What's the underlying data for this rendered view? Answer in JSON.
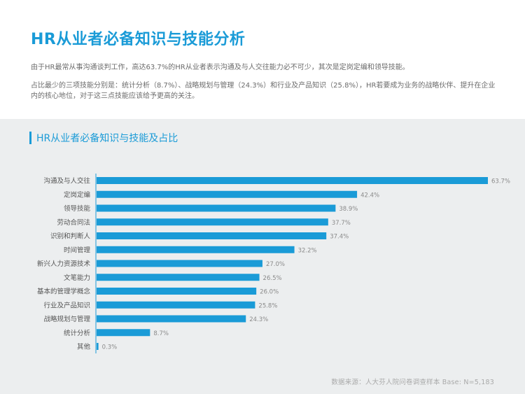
{
  "header": {
    "title": "HR从业者必备知识与技能分析",
    "paragraph1": "由于HR最常从事沟通谈判工作，高达63.7%的HR从业者表示沟通及与人交往能力必不可少，其次是定岗定编和领导技能。",
    "paragraph2": "占比最少的三项技能分别是：统计分析（8.7%）、战略规划与管理（24.3%）和行业及产品知识（25.8%），HR若要成为业务的战略伙伴、提升在企业内的核心地位，对于这三点技能应该给予更高的关注。"
  },
  "chart_panel": {
    "title": "HR从业者必备知识与技能及占比",
    "source": "数据来源：人大芬人院问卷调查样本 Base: N=5,183"
  },
  "chart_data": {
    "type": "bar",
    "orientation": "horizontal",
    "title": "HR从业者必备知识与技能及占比",
    "categories": [
      "沟通及与人交往",
      "定岗定编",
      "领导技能",
      "劳动合同法",
      "识别和判断人",
      "时间管理",
      "新兴人力资源技术",
      "文笔能力",
      "基本的管理学概念",
      "行业及产品知识",
      "战略规划与管理",
      "统计分析",
      "其他"
    ],
    "values": [
      63.7,
      42.4,
      38.9,
      37.7,
      37.4,
      32.2,
      27.0,
      26.5,
      26.0,
      25.8,
      24.3,
      8.7,
      0.3
    ],
    "value_labels": [
      "63.7%",
      "42.4%",
      "38.9%",
      "37.7%",
      "37.4%",
      "32.2%",
      "27.0%",
      "26.5%",
      "26.0%",
      "25.8%",
      "24.3%",
      "8.7%",
      "0.3%"
    ],
    "xlim": [
      0,
      63.7
    ],
    "grid": false,
    "colors": {
      "bar": "#1a9bd7",
      "axis": "#1a9bd7",
      "label": "#555555",
      "value_label": "#8a8a8a"
    }
  }
}
